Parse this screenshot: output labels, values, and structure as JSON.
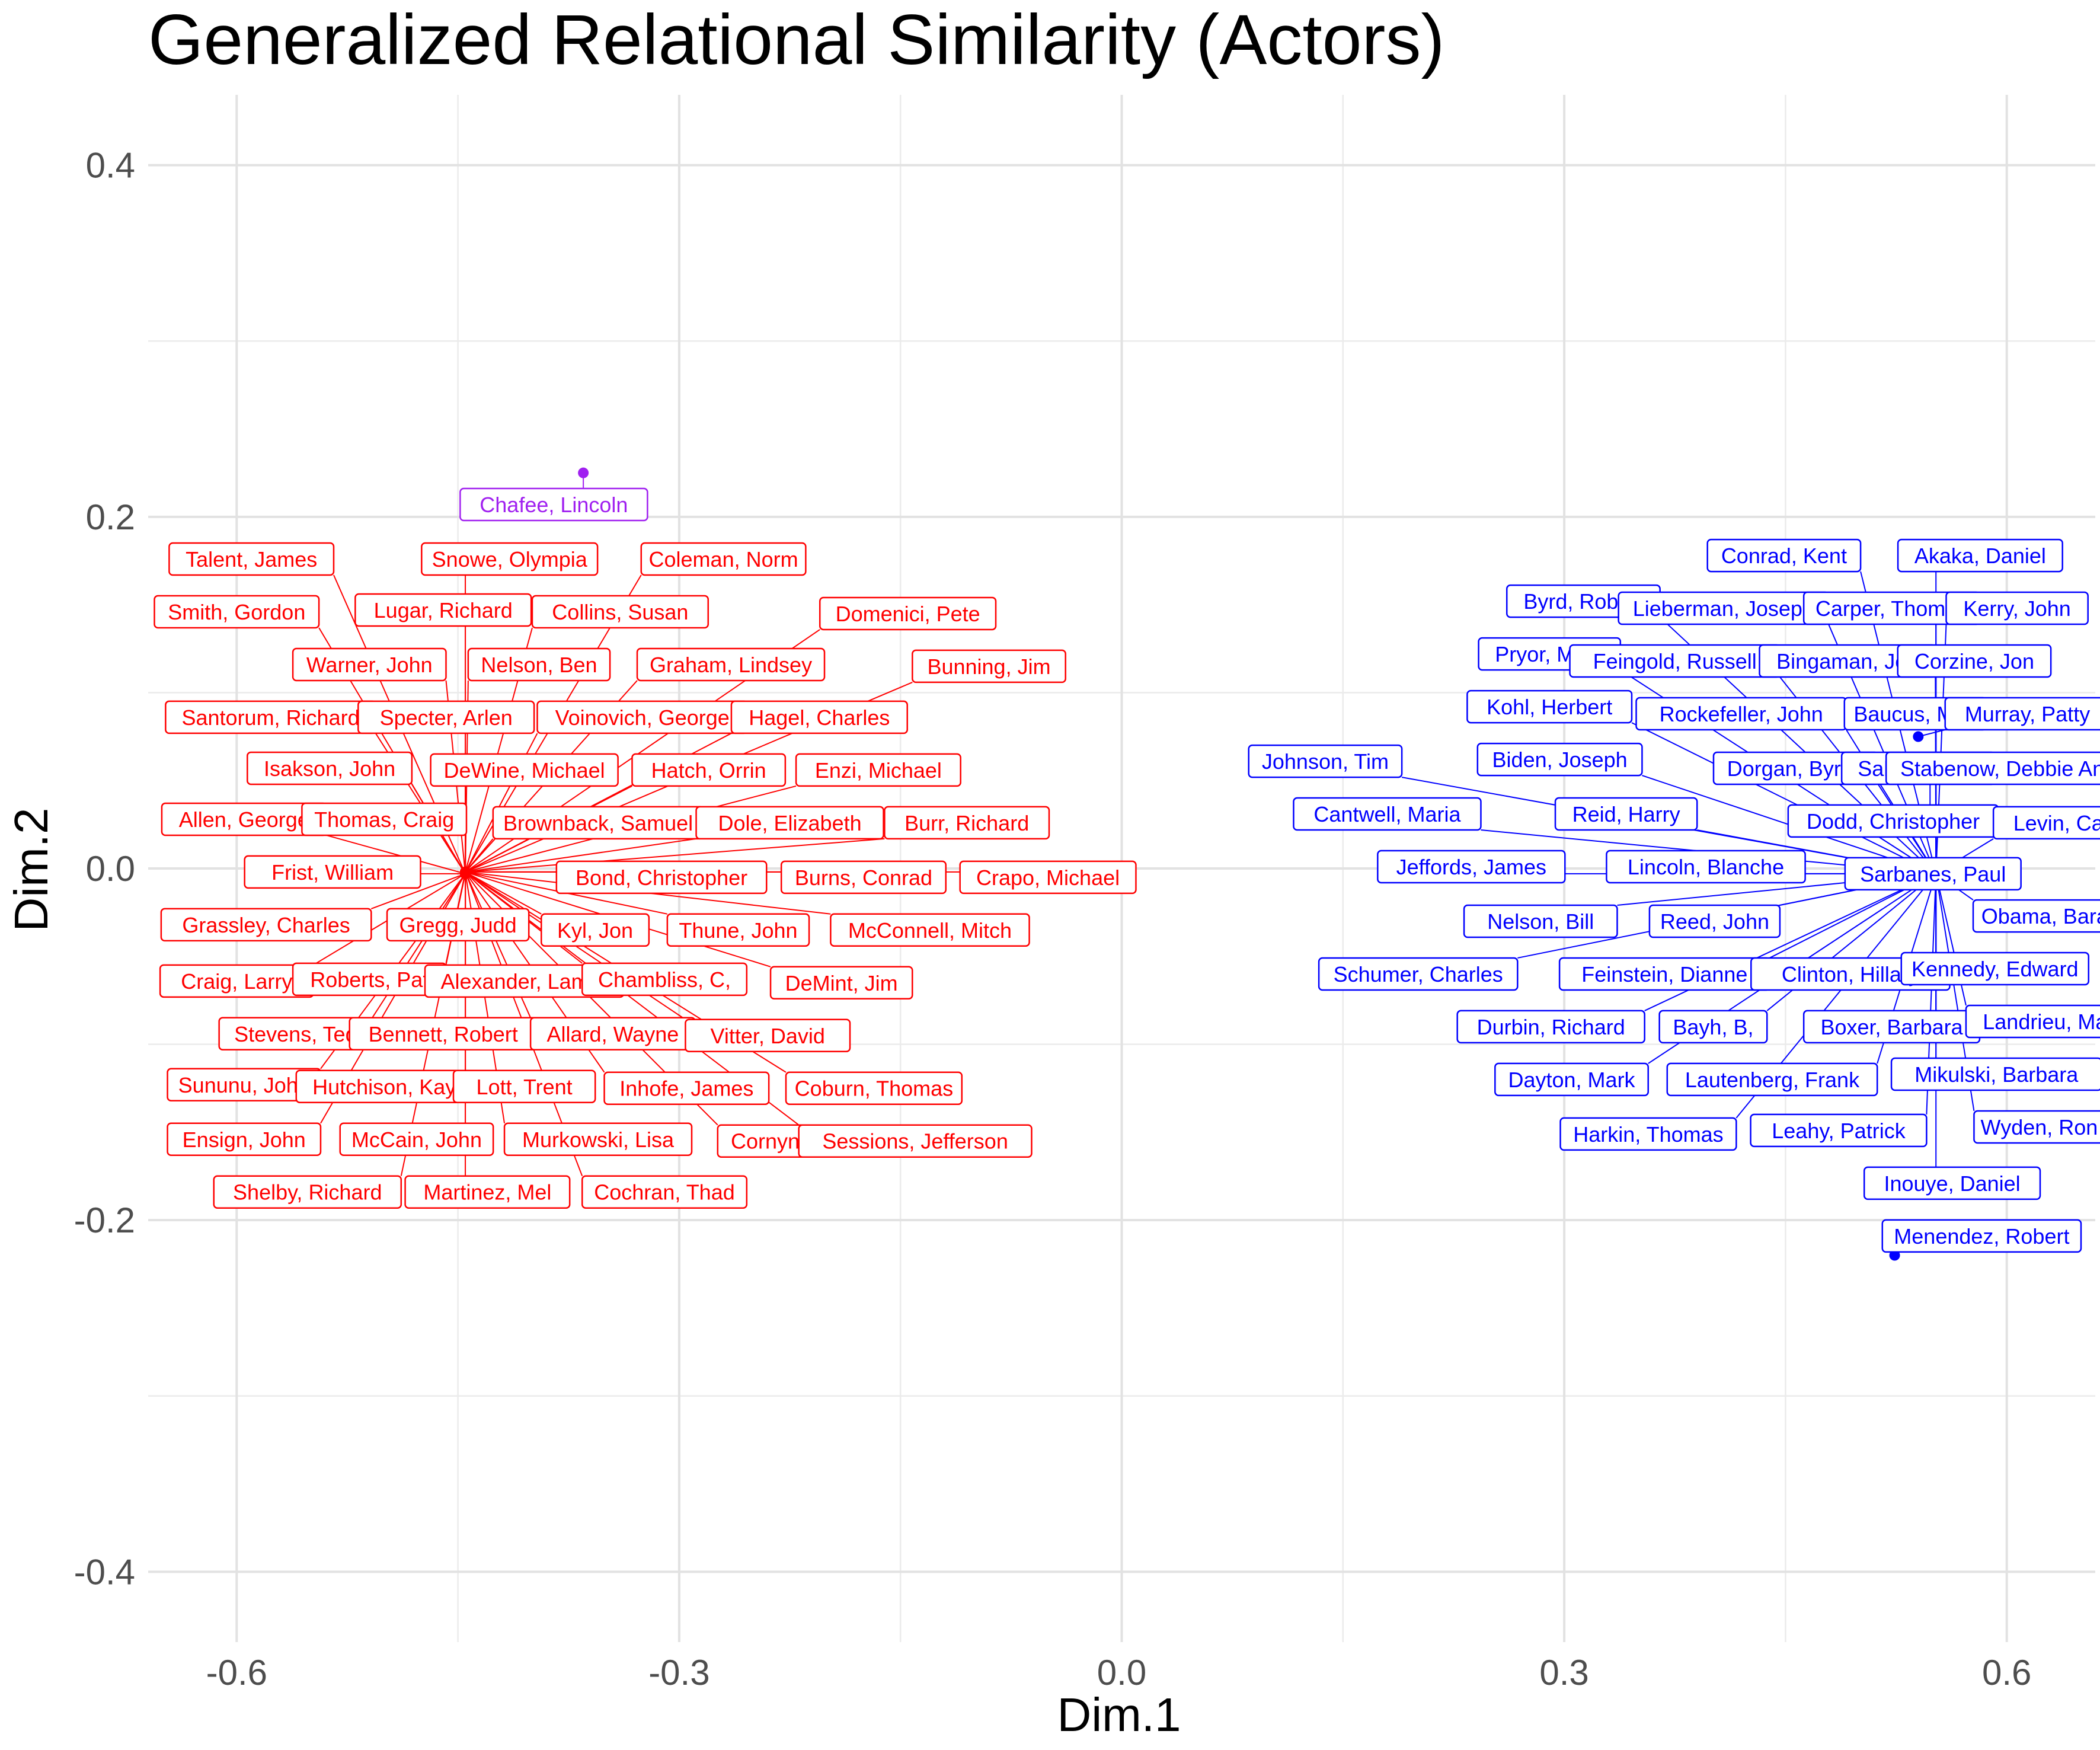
{
  "chart_data": {
    "type": "scatter",
    "title": "Generalized Relational Similarity (Actors)",
    "xlabel": "Dim.1",
    "ylabel": "Dim.2",
    "xlim": [
      -0.66,
      0.66
    ],
    "ylim": [
      -0.44,
      0.44
    ],
    "x_ticks": [
      -0.6,
      -0.3,
      0.0,
      0.3,
      0.6
    ],
    "x_tick_labels": [
      "-0.6",
      "-0.3",
      "0.0",
      "0.3",
      "0.6"
    ],
    "y_ticks": [
      0.4,
      0.2,
      0.0,
      -0.2,
      -0.4
    ],
    "y_tick_labels": [
      "0.4",
      "0.2",
      "0.0",
      "-0.2",
      "-0.4"
    ],
    "grid": true,
    "legend": "none",
    "colors": {
      "republican": "#ff0000",
      "democrat": "#0000ff",
      "independent": "#a020f0"
    },
    "points": [
      {
        "name": "Talent, James",
        "group": "republican",
        "x": -0.445,
        "y": -0.003,
        "lx": -0.59,
        "ly": 0.176
      },
      {
        "name": "Snowe, Olympia",
        "group": "republican",
        "x": -0.445,
        "y": -0.002,
        "lx": -0.415,
        "ly": 0.176
      },
      {
        "name": "Coleman, Norm",
        "group": "republican",
        "x": -0.445,
        "y": -0.002,
        "lx": -0.27,
        "ly": 0.176
      },
      {
        "name": "Smith, Gordon",
        "group": "republican",
        "x": -0.445,
        "y": -0.003,
        "lx": -0.6,
        "ly": 0.146
      },
      {
        "name": "Lugar, Richard",
        "group": "republican",
        "x": -0.445,
        "y": -0.002,
        "lx": -0.46,
        "ly": 0.147
      },
      {
        "name": "Collins, Susan",
        "group": "republican",
        "x": -0.445,
        "y": -0.002,
        "lx": -0.34,
        "ly": 0.146
      },
      {
        "name": "Domenici, Pete",
        "group": "republican",
        "x": -0.445,
        "y": -0.002,
        "lx": -0.145,
        "ly": 0.145
      },
      {
        "name": "Warner, John",
        "group": "republican",
        "x": -0.445,
        "y": -0.003,
        "lx": -0.51,
        "ly": 0.116
      },
      {
        "name": "Nelson, Ben",
        "group": "republican",
        "x": -0.445,
        "y": -0.002,
        "lx": -0.395,
        "ly": 0.116
      },
      {
        "name": "Graham, Lindsey",
        "group": "republican",
        "x": -0.445,
        "y": -0.002,
        "lx": -0.265,
        "ly": 0.116
      },
      {
        "name": "Bunning, Jim",
        "group": "republican",
        "x": -0.445,
        "y": -0.002,
        "lx": -0.09,
        "ly": 0.115
      },
      {
        "name": "Santorum, Richard",
        "group": "republican",
        "x": -0.445,
        "y": -0.003,
        "lx": -0.577,
        "ly": 0.086
      },
      {
        "name": "Specter, Arlen",
        "group": "republican",
        "x": -0.445,
        "y": -0.002,
        "lx": -0.458,
        "ly": 0.086
      },
      {
        "name": "Voinovich, George",
        "group": "republican",
        "x": -0.445,
        "y": -0.002,
        "lx": -0.325,
        "ly": 0.086
      },
      {
        "name": "Hagel, Charles",
        "group": "republican",
        "x": -0.445,
        "y": -0.002,
        "lx": -0.205,
        "ly": 0.086
      },
      {
        "name": "Isakson, John",
        "group": "republican",
        "x": -0.445,
        "y": -0.003,
        "lx": -0.537,
        "ly": 0.057
      },
      {
        "name": "DeWine, Michael",
        "group": "republican",
        "x": -0.445,
        "y": -0.002,
        "lx": -0.405,
        "ly": 0.056
      },
      {
        "name": "Hatch, Orrin",
        "group": "republican",
        "x": -0.445,
        "y": -0.002,
        "lx": -0.28,
        "ly": 0.056
      },
      {
        "name": "Enzi, Michael",
        "group": "republican",
        "x": -0.445,
        "y": -0.002,
        "lx": -0.165,
        "ly": 0.056
      },
      {
        "name": "Allen, George",
        "group": "republican",
        "x": -0.445,
        "y": -0.003,
        "lx": -0.595,
        "ly": 0.028
      },
      {
        "name": "Thomas, Craig",
        "group": "republican",
        "x": -0.445,
        "y": -0.002,
        "lx": -0.5,
        "ly": 0.028
      },
      {
        "name": "Brownback, Samuel",
        "group": "republican",
        "x": -0.445,
        "y": -0.002,
        "lx": -0.355,
        "ly": 0.026
      },
      {
        "name": "Dole, Elizabeth",
        "group": "republican",
        "x": -0.445,
        "y": -0.002,
        "lx": -0.225,
        "ly": 0.026
      },
      {
        "name": "Burr, Richard",
        "group": "republican",
        "x": -0.445,
        "y": -0.002,
        "lx": -0.105,
        "ly": 0.026
      },
      {
        "name": "Frist, William",
        "group": "republican",
        "x": -0.445,
        "y": -0.003,
        "lx": -0.535,
        "ly": -0.002
      },
      {
        "name": "Bond, Christopher",
        "group": "republican",
        "x": -0.445,
        "y": -0.002,
        "lx": -0.312,
        "ly": -0.005
      },
      {
        "name": "Burns, Conrad",
        "group": "republican",
        "x": -0.445,
        "y": -0.002,
        "lx": -0.175,
        "ly": -0.005
      },
      {
        "name": "Crapo, Michael",
        "group": "republican",
        "x": -0.445,
        "y": -0.002,
        "lx": -0.05,
        "ly": -0.005
      },
      {
        "name": "Grassley, Charles",
        "group": "republican",
        "x": -0.445,
        "y": -0.003,
        "lx": -0.58,
        "ly": -0.032
      },
      {
        "name": "Gregg, Judd",
        "group": "republican",
        "x": -0.445,
        "y": -0.002,
        "lx": -0.45,
        "ly": -0.032
      },
      {
        "name": "Kyl, Jon",
        "group": "republican",
        "x": -0.445,
        "y": -0.002,
        "lx": -0.357,
        "ly": -0.035
      },
      {
        "name": "Thune, John",
        "group": "republican",
        "x": -0.445,
        "y": -0.002,
        "lx": -0.26,
        "ly": -0.035
      },
      {
        "name": "McConnell, Mitch",
        "group": "republican",
        "x": -0.445,
        "y": -0.002,
        "lx": -0.13,
        "ly": -0.035
      },
      {
        "name": "Craig, Larry",
        "group": "republican",
        "x": -0.445,
        "y": -0.003,
        "lx": -0.6,
        "ly": -0.064
      },
      {
        "name": "Roberts, Pat",
        "group": "republican",
        "x": -0.445,
        "y": -0.002,
        "lx": -0.51,
        "ly": -0.063
      },
      {
        "name": "Alexander, Lamar",
        "group": "republican",
        "x": -0.445,
        "y": -0.002,
        "lx": -0.405,
        "ly": -0.064
      },
      {
        "name": "Chambliss, C,",
        "group": "republican",
        "x": -0.445,
        "y": -0.002,
        "lx": -0.31,
        "ly": -0.063
      },
      {
        "name": "DeMint, Jim",
        "group": "republican",
        "x": -0.445,
        "y": -0.002,
        "lx": -0.19,
        "ly": -0.065
      },
      {
        "name": "Stevens, Ted",
        "group": "republican",
        "x": -0.445,
        "y": -0.003,
        "lx": -0.56,
        "ly": -0.094
      },
      {
        "name": "Bennett, Robert",
        "group": "republican",
        "x": -0.445,
        "y": -0.002,
        "lx": -0.46,
        "ly": -0.094
      },
      {
        "name": "Allard, Wayne",
        "group": "republican",
        "x": -0.445,
        "y": -0.002,
        "lx": -0.345,
        "ly": -0.094
      },
      {
        "name": "Vitter, David",
        "group": "republican",
        "x": -0.445,
        "y": -0.002,
        "lx": -0.24,
        "ly": -0.095
      },
      {
        "name": "Sununu, John",
        "group": "republican",
        "x": -0.445,
        "y": -0.003,
        "lx": -0.595,
        "ly": -0.123
      },
      {
        "name": "Hutchison, Kay",
        "group": "republican",
        "x": -0.445,
        "y": -0.002,
        "lx": -0.5,
        "ly": -0.124
      },
      {
        "name": "Lott, Trent",
        "group": "republican",
        "x": -0.445,
        "y": -0.002,
        "lx": -0.405,
        "ly": -0.124
      },
      {
        "name": "Inhofe, James",
        "group": "republican",
        "x": -0.445,
        "y": -0.002,
        "lx": -0.295,
        "ly": -0.125
      },
      {
        "name": "Coburn, Thomas",
        "group": "republican",
        "x": -0.445,
        "y": -0.002,
        "lx": -0.168,
        "ly": -0.125
      },
      {
        "name": "Ensign, John",
        "group": "republican",
        "x": -0.445,
        "y": -0.003,
        "lx": -0.595,
        "ly": -0.154
      },
      {
        "name": "McCain, John",
        "group": "republican",
        "x": -0.445,
        "y": -0.002,
        "lx": -0.478,
        "ly": -0.154
      },
      {
        "name": "Murkowski, Lisa",
        "group": "republican",
        "x": -0.445,
        "y": -0.002,
        "lx": -0.355,
        "ly": -0.154
      },
      {
        "name": "Cornyn, John",
        "group": "republican",
        "x": -0.445,
        "y": -0.002,
        "lx": -0.222,
        "ly": -0.155
      },
      {
        "name": "Sessions, Jefferson",
        "group": "republican",
        "x": -0.445,
        "y": -0.002,
        "lx": -0.14,
        "ly": -0.155
      },
      {
        "name": "Shelby, Richard",
        "group": "republican",
        "x": -0.445,
        "y": -0.003,
        "lx": -0.552,
        "ly": -0.184
      },
      {
        "name": "Martinez, Mel",
        "group": "republican",
        "x": -0.445,
        "y": -0.002,
        "lx": -0.43,
        "ly": -0.184
      },
      {
        "name": "Cochran, Thad",
        "group": "republican",
        "x": -0.445,
        "y": -0.002,
        "lx": -0.31,
        "ly": -0.184
      },
      {
        "name": "Chafee, Lincoln",
        "group": "independent",
        "x": -0.365,
        "y": 0.225,
        "lx": -0.385,
        "ly": 0.207
      },
      {
        "name": "Conrad, Kent",
        "group": "democrat",
        "x": 0.552,
        "y": -0.003,
        "lx": 0.449,
        "ly": 0.178
      },
      {
        "name": "Akaka, Daniel",
        "group": "democrat",
        "x": 0.552,
        "y": -0.003,
        "lx": 0.582,
        "ly": 0.178
      },
      {
        "name": "Byrd, Robert",
        "group": "democrat",
        "x": 0.552,
        "y": -0.003,
        "lx": 0.313,
        "ly": 0.152
      },
      {
        "name": "Lieberman, Joseph",
        "group": "democrat",
        "x": 0.552,
        "y": -0.003,
        "lx": 0.408,
        "ly": 0.148
      },
      {
        "name": "Carper, Thomas",
        "group": "democrat",
        "x": 0.552,
        "y": -0.003,
        "lx": 0.522,
        "ly": 0.148
      },
      {
        "name": "Kerry, John",
        "group": "democrat",
        "x": 0.552,
        "y": -0.003,
        "lx": 0.607,
        "ly": 0.148
      },
      {
        "name": "Pryor, Mark",
        "group": "democrat",
        "x": 0.552,
        "y": -0.003,
        "lx": 0.29,
        "ly": 0.122
      },
      {
        "name": "Feingold, Russell",
        "group": "democrat",
        "x": 0.552,
        "y": -0.003,
        "lx": 0.375,
        "ly": 0.118
      },
      {
        "name": "Bingaman, Jeff",
        "group": "democrat",
        "x": 0.552,
        "y": -0.003,
        "lx": 0.492,
        "ly": 0.118
      },
      {
        "name": "Corzine, Jon",
        "group": "democrat",
        "x": 0.552,
        "y": -0.003,
        "lx": 0.578,
        "ly": 0.118
      },
      {
        "name": "Kohl, Herbert",
        "group": "democrat",
        "x": 0.552,
        "y": -0.003,
        "lx": 0.29,
        "ly": 0.092
      },
      {
        "name": "Rockefeller, John",
        "group": "democrat",
        "x": 0.552,
        "y": -0.003,
        "lx": 0.42,
        "ly": 0.088
      },
      {
        "name": "Baucus, Max",
        "group": "democrat",
        "x": 0.552,
        "y": -0.003,
        "lx": 0.538,
        "ly": 0.088
      },
      {
        "name": "Murray, Patty",
        "group": "democrat",
        "x": 0.54,
        "y": 0.075,
        "lx": 0.614,
        "ly": 0.088
      },
      {
        "name": "Johnson, Tim",
        "group": "democrat",
        "x": 0.552,
        "y": -0.003,
        "lx": 0.138,
        "ly": 0.061
      },
      {
        "name": "Biden, Joseph",
        "group": "democrat",
        "x": 0.552,
        "y": -0.003,
        "lx": 0.297,
        "ly": 0.062
      },
      {
        "name": "Dorgan, Byron",
        "group": "democrat",
        "x": 0.552,
        "y": -0.003,
        "lx": 0.457,
        "ly": 0.057
      },
      {
        "name": "Salazar, Ken",
        "group": "democrat",
        "x": 0.552,
        "y": -0.003,
        "lx": 0.54,
        "ly": 0.057
      },
      {
        "name": "Stabenow, Debbie Ann",
        "group": "democrat",
        "x": 0.548,
        "y": 0.033,
        "lx": 0.601,
        "ly": 0.057
      },
      {
        "name": "Cantwell, Maria",
        "group": "democrat",
        "x": 0.552,
        "y": -0.003,
        "lx": 0.18,
        "ly": 0.031
      },
      {
        "name": "Reid, Harry",
        "group": "democrat",
        "x": 0.552,
        "y": -0.003,
        "lx": 0.342,
        "ly": 0.031
      },
      {
        "name": "Dodd, Christopher",
        "group": "democrat",
        "x": 0.552,
        "y": -0.003,
        "lx": 0.523,
        "ly": 0.027
      },
      {
        "name": "Levin, Carl",
        "group": "democrat",
        "x": 0.552,
        "y": -0.003,
        "lx": 0.639,
        "ly": 0.026
      },
      {
        "name": "Jeffords, James",
        "group": "democrat",
        "x": 0.552,
        "y": -0.003,
        "lx": 0.237,
        "ly": 0.001
      },
      {
        "name": "Lincoln, Blanche",
        "group": "democrat",
        "x": 0.552,
        "y": -0.003,
        "lx": 0.396,
        "ly": 0.001
      },
      {
        "name": "Sarbanes, Paul",
        "group": "democrat",
        "x": 0.552,
        "y": -0.003,
        "lx": 0.55,
        "ly": -0.003
      },
      {
        "name": "Nelson, Bill",
        "group": "democrat",
        "x": 0.552,
        "y": -0.003,
        "lx": 0.284,
        "ly": -0.03
      },
      {
        "name": "Reed, John",
        "group": "democrat",
        "x": 0.552,
        "y": -0.003,
        "lx": 0.402,
        "ly": -0.03
      },
      {
        "name": "Obama, Barack",
        "group": "democrat",
        "x": 0.552,
        "y": -0.003,
        "lx": 0.633,
        "ly": -0.027
      },
      {
        "name": "Schumer, Charles",
        "group": "democrat",
        "x": 0.552,
        "y": -0.003,
        "lx": 0.201,
        "ly": -0.06
      },
      {
        "name": "Feinstein, Dianne",
        "group": "democrat",
        "x": 0.552,
        "y": -0.003,
        "lx": 0.368,
        "ly": -0.06
      },
      {
        "name": "Clinton, Hillary",
        "group": "democrat",
        "x": 0.552,
        "y": -0.003,
        "lx": 0.494,
        "ly": -0.06
      },
      {
        "name": "Kennedy, Edward",
        "group": "democrat",
        "x": 0.552,
        "y": -0.003,
        "lx": 0.592,
        "ly": -0.057
      },
      {
        "name": "Durbin, Richard",
        "group": "democrat",
        "x": 0.552,
        "y": -0.003,
        "lx": 0.291,
        "ly": -0.09
      },
      {
        "name": "Bayh, B,",
        "group": "democrat",
        "x": 0.552,
        "y": -0.003,
        "lx": 0.401,
        "ly": -0.09
      },
      {
        "name": "Boxer, Barbara",
        "group": "democrat",
        "x": 0.552,
        "y": -0.003,
        "lx": 0.522,
        "ly": -0.09
      },
      {
        "name": "Landrieu, Mary",
        "group": "democrat",
        "x": 0.552,
        "y": -0.003,
        "lx": 0.632,
        "ly": -0.087
      },
      {
        "name": "Dayton, Mark",
        "group": "democrat",
        "x": 0.552,
        "y": -0.003,
        "lx": 0.305,
        "ly": -0.12
      },
      {
        "name": "Lautenberg, Frank",
        "group": "democrat",
        "x": 0.552,
        "y": -0.003,
        "lx": 0.441,
        "ly": -0.12
      },
      {
        "name": "Mikulski, Barbara",
        "group": "democrat",
        "x": 0.552,
        "y": -0.003,
        "lx": 0.593,
        "ly": -0.117
      },
      {
        "name": "Harkin, Thomas",
        "group": "democrat",
        "x": 0.552,
        "y": -0.003,
        "lx": 0.357,
        "ly": -0.151
      },
      {
        "name": "Leahy, Patrick",
        "group": "democrat",
        "x": 0.552,
        "y": -0.003,
        "lx": 0.486,
        "ly": -0.149
      },
      {
        "name": "Wyden, Ron",
        "group": "democrat",
        "x": 0.552,
        "y": -0.003,
        "lx": 0.622,
        "ly": -0.147
      },
      {
        "name": "Inouye, Daniel",
        "group": "democrat",
        "x": 0.552,
        "y": -0.003,
        "lx": 0.563,
        "ly": -0.179
      },
      {
        "name": "Menendez, Robert",
        "group": "democrat",
        "x": 0.524,
        "y": -0.22,
        "lx": 0.583,
        "ly": -0.209
      }
    ]
  }
}
